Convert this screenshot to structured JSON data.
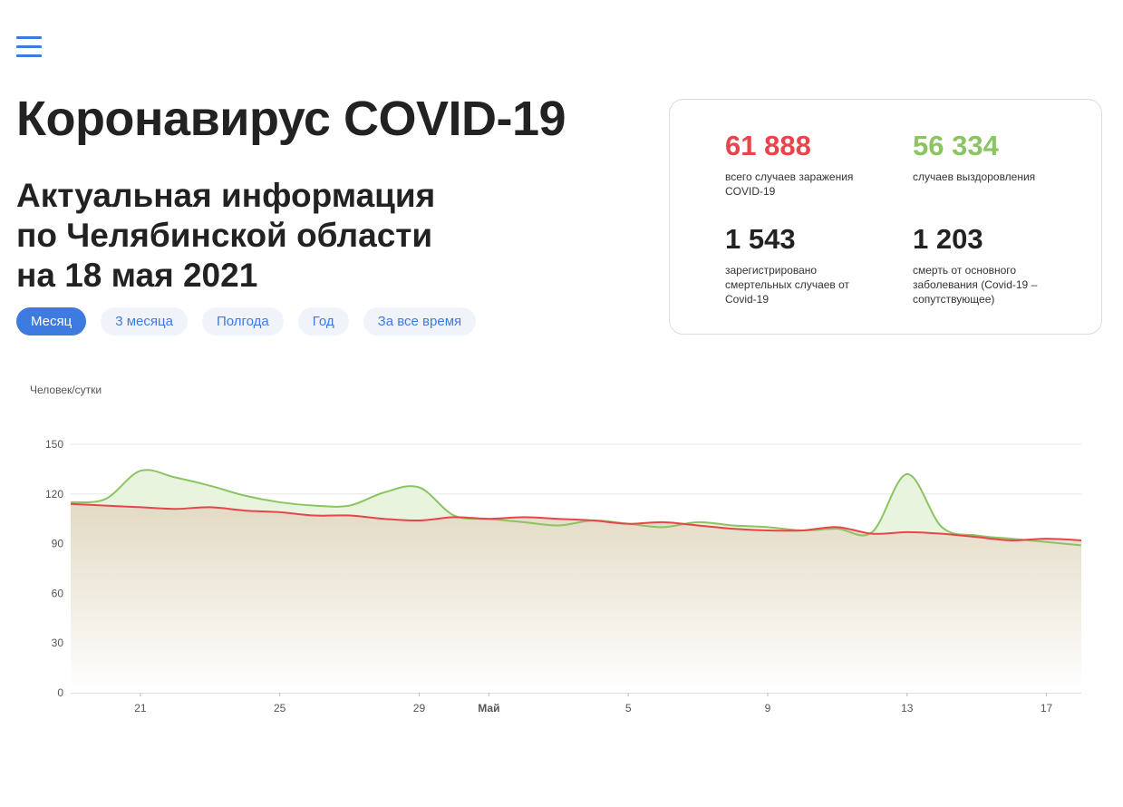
{
  "header": {
    "title": "Коронавирус COVID-19",
    "subtitle": [
      "Актуальная информация",
      "по Челябинской области",
      "на 18 мая 2021"
    ]
  },
  "filters": {
    "items": [
      "Месяц",
      "3 месяца",
      "Полгода",
      "Год",
      "За все время"
    ],
    "active": 0
  },
  "stats": [
    {
      "value": "61 888",
      "label": "всего случаев заражения COVID-19",
      "color": "#e8444a"
    },
    {
      "value": "56 334",
      "label": "случаев выздоровления",
      "color": "#8bc462"
    },
    {
      "value": "1 543",
      "label": "зарегистрировано смертельных случаев от Covid-19",
      "color": "#222222"
    },
    {
      "value": "1 203",
      "label": "смерть от основного заболевания (Covid-19 – сопутствующее)",
      "color": "#222222"
    }
  ],
  "chart_data": {
    "type": "line",
    "y_label": "Человек/сутки",
    "categories": [
      null,
      null,
      "21",
      null,
      null,
      null,
      "25",
      null,
      null,
      null,
      "29",
      null,
      "Май",
      null,
      null,
      null,
      "5",
      null,
      null,
      null,
      "9",
      null,
      null,
      null,
      "13",
      null,
      null,
      null,
      "17",
      null
    ],
    "series": [
      {
        "color": "#8bc462",
        "values": [
          115,
          117,
          134,
          130,
          125,
          119,
          115,
          113,
          113,
          121,
          124,
          107,
          105,
          103,
          101,
          104,
          102,
          100,
          103,
          101,
          100,
          98,
          99,
          97,
          132,
          100,
          95,
          93,
          91,
          89
        ]
      },
      {
        "color": "#e8444a",
        "values": [
          114,
          113,
          112,
          111,
          112,
          110,
          109,
          107,
          107,
          105,
          104,
          106,
          105,
          106,
          105,
          104,
          102,
          103,
          101,
          99,
          98,
          98,
          100,
          96,
          97,
          96,
          94,
          92,
          93,
          92
        ]
      }
    ],
    "ylim": [
      0,
      150
    ],
    "yticks": [
      0,
      30,
      60,
      90,
      120,
      150
    ],
    "grid": true
  }
}
